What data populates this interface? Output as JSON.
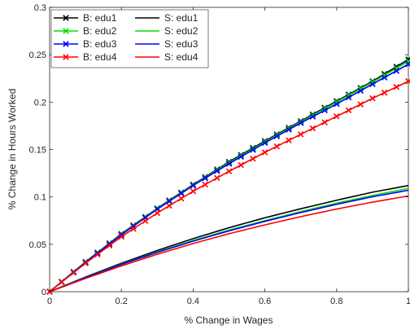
{
  "chart_data": {
    "type": "line",
    "title": "",
    "xlabel": "% Change in Wages",
    "ylabel": "% Change in Hours Worked",
    "xlim": [
      0,
      1
    ],
    "ylim": [
      0,
      0.3
    ],
    "xticks": [
      0,
      0.2,
      0.4,
      0.6,
      0.8,
      1
    ],
    "xtick_labels": [
      "0",
      "0.2",
      "0.4",
      "0.6",
      "0.8",
      "1"
    ],
    "yticks": [
      0,
      0.05,
      0.1,
      0.15,
      0.2,
      0.25,
      0.3
    ],
    "ytick_labels": [
      "0",
      "0.05",
      "0.1",
      "0.15",
      "0.2",
      "0.25",
      "0.3"
    ],
    "grid": false,
    "legend_position": "top-left",
    "legend_columns": 2,
    "series": [
      {
        "name": "B: edu1",
        "color": "#000000",
        "marker": "x",
        "x": [
          0,
          0.1,
          0.2,
          0.3,
          0.4,
          0.5,
          0.6,
          0.7,
          0.8,
          0.9,
          1.0
        ],
        "y": [
          0,
          0.0315,
          0.061,
          0.088,
          0.113,
          0.137,
          0.159,
          0.18,
          0.201,
          0.222,
          0.245
        ]
      },
      {
        "name": "B: edu2",
        "color": "#00e000",
        "marker": "x",
        "x": [
          0,
          0.1,
          0.2,
          0.3,
          0.4,
          0.5,
          0.6,
          0.7,
          0.8,
          0.9,
          1.0
        ],
        "y": [
          0,
          0.0315,
          0.0605,
          0.0875,
          0.1125,
          0.136,
          0.158,
          0.179,
          0.2,
          0.221,
          0.243
        ]
      },
      {
        "name": "B: edu3",
        "color": "#0000ff",
        "marker": "x",
        "x": [
          0,
          0.1,
          0.2,
          0.3,
          0.4,
          0.5,
          0.6,
          0.7,
          0.8,
          0.9,
          1.0
        ],
        "y": [
          0,
          0.031,
          0.06,
          0.087,
          0.112,
          0.135,
          0.157,
          0.178,
          0.198,
          0.219,
          0.24
        ]
      },
      {
        "name": "B: edu4",
        "color": "#ff0000",
        "marker": "x",
        "x": [
          0,
          0.1,
          0.2,
          0.3,
          0.4,
          0.5,
          0.6,
          0.7,
          0.8,
          0.9,
          1.0
        ],
        "y": [
          0,
          0.03,
          0.058,
          0.083,
          0.106,
          0.127,
          0.147,
          0.166,
          0.185,
          0.204,
          0.222
        ]
      },
      {
        "name": "S: edu1",
        "color": "#000000",
        "marker": "none",
        "x": [
          0,
          0.1,
          0.2,
          0.3,
          0.4,
          0.5,
          0.6,
          0.7,
          0.8,
          0.9,
          1.0
        ],
        "y": [
          0,
          0.0155,
          0.03,
          0.0435,
          0.056,
          0.0675,
          0.078,
          0.0875,
          0.0965,
          0.105,
          0.112
        ]
      },
      {
        "name": "S: edu2",
        "color": "#00e000",
        "marker": "none",
        "x": [
          0,
          0.1,
          0.2,
          0.3,
          0.4,
          0.5,
          0.6,
          0.7,
          0.8,
          0.9,
          1.0
        ],
        "y": [
          0,
          0.015,
          0.029,
          0.042,
          0.054,
          0.065,
          0.075,
          0.0845,
          0.0935,
          0.1015,
          0.109
        ]
      },
      {
        "name": "S: edu3",
        "color": "#0000ff",
        "marker": "none",
        "x": [
          0,
          0.1,
          0.2,
          0.3,
          0.4,
          0.5,
          0.6,
          0.7,
          0.8,
          0.9,
          1.0
        ],
        "y": [
          0,
          0.0148,
          0.0287,
          0.0415,
          0.0533,
          0.0642,
          0.0742,
          0.0835,
          0.0922,
          0.1002,
          0.107
        ]
      },
      {
        "name": "S: edu4",
        "color": "#ff0000",
        "marker": "none",
        "x": [
          0,
          0.1,
          0.2,
          0.3,
          0.4,
          0.5,
          0.6,
          0.7,
          0.8,
          0.9,
          1.0
        ],
        "y": [
          0,
          0.014,
          0.0272,
          0.0395,
          0.0508,
          0.0612,
          0.0705,
          0.0792,
          0.0872,
          0.0945,
          0.101
        ]
      }
    ]
  }
}
